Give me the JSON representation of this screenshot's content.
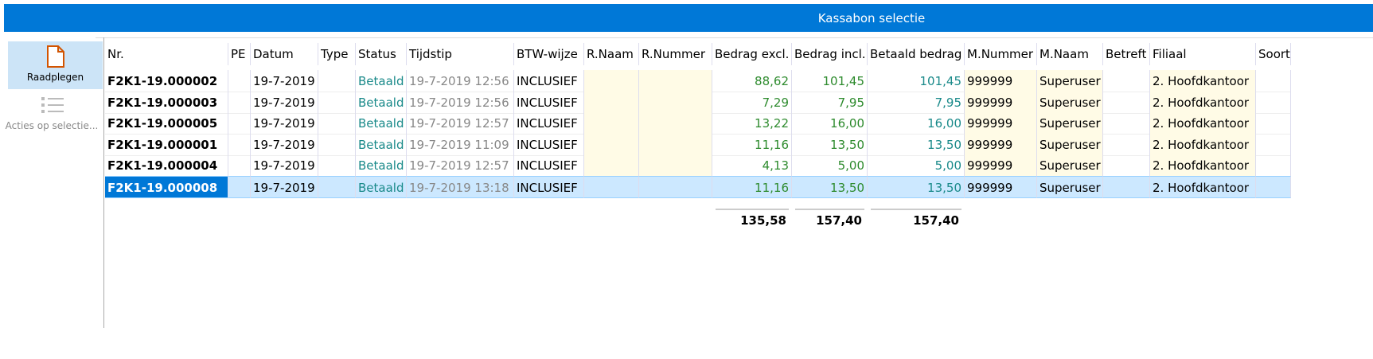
{
  "window": {
    "title": "Kassabon selectie"
  },
  "sidebar": {
    "buttons": [
      "Raadplegen",
      "Acties op selectie..."
    ]
  },
  "table": {
    "columns": [
      "Nr.",
      "PE",
      "Datum",
      "Type",
      "Status",
      "Tijdstip",
      "BTW-wijze",
      "R.Naam",
      "R.Nummer",
      "Bedrag excl.",
      "Bedrag incl.",
      "Betaald bedrag",
      "M.Nummer",
      "M.Naam",
      "Betreft",
      "Filiaal",
      "Soort"
    ],
    "rows": [
      [
        "F2K1-19.000002",
        "",
        "19-7-2019",
        "",
        "Betaald",
        "19-7-2019 12:56",
        "INCLUSIEF",
        "",
        "",
        "88,62",
        "101,45",
        "101,45",
        "999999",
        "Superuser",
        "",
        "2. Hoofdkantoor",
        ""
      ],
      [
        "F2K1-19.000003",
        "",
        "19-7-2019",
        "",
        "Betaald",
        "19-7-2019 12:56",
        "INCLUSIEF",
        "",
        "",
        "7,29",
        "7,95",
        "7,95",
        "999999",
        "Superuser",
        "",
        "2. Hoofdkantoor",
        ""
      ],
      [
        "F2K1-19.000005",
        "",
        "19-7-2019",
        "",
        "Betaald",
        "19-7-2019 12:57",
        "INCLUSIEF",
        "",
        "",
        "13,22",
        "16,00",
        "16,00",
        "999999",
        "Superuser",
        "",
        "2. Hoofdkantoor",
        ""
      ],
      [
        "F2K1-19.000001",
        "",
        "19-7-2019",
        "",
        "Betaald",
        "19-7-2019 11:09",
        "INCLUSIEF",
        "",
        "",
        "11,16",
        "13,50",
        "13,50",
        "999999",
        "Superuser",
        "",
        "2. Hoofdkantoor",
        ""
      ],
      [
        "F2K1-19.000004",
        "",
        "19-7-2019",
        "",
        "Betaald",
        "19-7-2019 12:57",
        "INCLUSIEF",
        "",
        "",
        "4,13",
        "5,00",
        "5,00",
        "999999",
        "Superuser",
        "",
        "2. Hoofdkantoor",
        ""
      ],
      [
        "F2K1-19.000008",
        "",
        "19-7-2019",
        "",
        "Betaald",
        "19-7-2019 13:18",
        "INCLUSIEF",
        "",
        "",
        "11,16",
        "13,50",
        "13,50",
        "999999",
        "Superuser",
        "",
        "2. Hoofdkantoor",
        ""
      ]
    ],
    "selected_row": 5,
    "totals": {
      "bedrag_excl": "135,58",
      "bedrag_incl": "157,40",
      "betaald_bedrag": "157,40"
    }
  }
}
